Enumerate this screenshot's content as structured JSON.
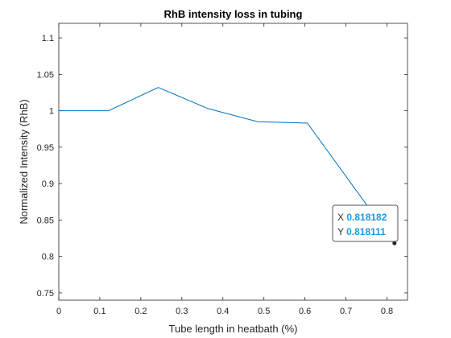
{
  "chart_data": {
    "type": "line",
    "title": "RhB intensity loss in tubing",
    "xlabel": "Tube length in heatbath (%)",
    "ylabel": "Normalized Intensity (RhB)",
    "xlim": [
      0,
      0.85
    ],
    "ylim": [
      0.74,
      1.12
    ],
    "x_ticks": [
      0,
      0.1,
      0.2,
      0.3,
      0.4,
      0.5,
      0.6,
      0.7,
      0.8
    ],
    "x_tick_labels": [
      "0",
      "0.1",
      "0.2",
      "0.3",
      "0.4",
      "0.5",
      "0.6",
      "0.7",
      "0.8"
    ],
    "y_ticks": [
      0.75,
      0.8,
      0.85,
      0.9,
      0.95,
      1,
      1.05,
      1.1
    ],
    "y_tick_labels": [
      "0.75",
      "0.8",
      "0.85",
      "0.9",
      "0.95",
      "1",
      "1.05",
      "1.1"
    ],
    "grid": false,
    "line_color": "#0072bd",
    "series": [
      {
        "x": [
          0,
          0.121212,
          0.242424,
          0.363636,
          0.484848,
          0.606061,
          0.818182
        ],
        "y": [
          1.0,
          1.0,
          1.032,
          1.003,
          0.985,
          0.983,
          0.818111
        ]
      }
    ],
    "datatip": {
      "x_label": "X",
      "y_label": "Y",
      "x_value": "0.818182",
      "y_value": "0.818111",
      "value_color": "#1a9ae0"
    }
  }
}
